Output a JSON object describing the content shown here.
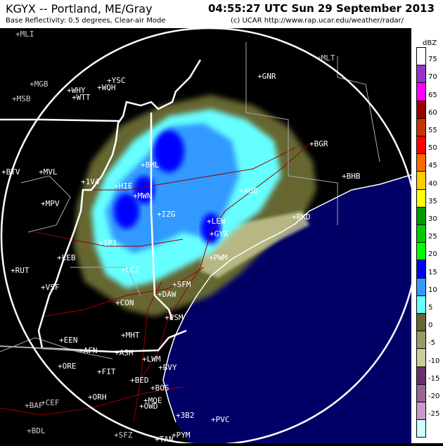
{
  "header": {
    "title": "KGYX -- Portland, ME/Gray",
    "time": "04:55:27 UTC Sun 29 September 2013",
    "subtitle": "Base Reflectivity: 0.5 degrees, Clear-air Mode",
    "credit": "(c) UCAR   http://www.rap.ucar.edu/weather/radar/"
  },
  "legend": {
    "unit": "dBZ",
    "colors": [
      "#ffffff",
      "#9933cc",
      "#ff00ff",
      "#990000",
      "#cc3300",
      "#ff0000",
      "#ff6600",
      "#ffcc00",
      "#ffff00",
      "#009900",
      "#00cc00",
      "#00ff00",
      "#0000ff",
      "#3399ff",
      "#66ffff",
      "#666633",
      "#999966",
      "#cccc99",
      "#663366",
      "#996699",
      "#cc99cc",
      "#ccffff"
    ],
    "labels": [
      "75",
      "70",
      "65",
      "60",
      "55",
      "50",
      "45",
      "40",
      "35",
      "30",
      "25",
      "20",
      "15",
      "10",
      "5",
      "0",
      "-5",
      "-10",
      "-15",
      "-20",
      "-25"
    ]
  },
  "map": {
    "radar_site": "GYX",
    "ocean_color": "#000066",
    "range_ring_color": "#ffffff",
    "cities": [
      "MLI",
      "YSC",
      "WQH",
      "WHY",
      "WTT",
      "MGB",
      "MSB",
      "GNR",
      "MLT",
      "BGR",
      "BHB",
      "BML",
      "HIE",
      "MWN",
      "1V4",
      "MVL",
      "BTV",
      "MPV",
      "IZG",
      "LEW",
      "GYX",
      "PWM",
      "AUG",
      "RKD",
      "1P1",
      "LEB",
      "RUT",
      "VSF",
      "LCI",
      "SFM",
      "DAW",
      "CON",
      "PSM",
      "MHT",
      "EEN",
      "AFN",
      "ASH",
      "LWM",
      "BVY",
      "ORE",
      "FIT",
      "BED",
      "BOS",
      "ORH",
      "MQE",
      "OWD",
      "BAF",
      "CEF",
      "3B2",
      "PVC",
      "BDL",
      "SFZ",
      "TAN",
      "PYM"
    ]
  }
}
